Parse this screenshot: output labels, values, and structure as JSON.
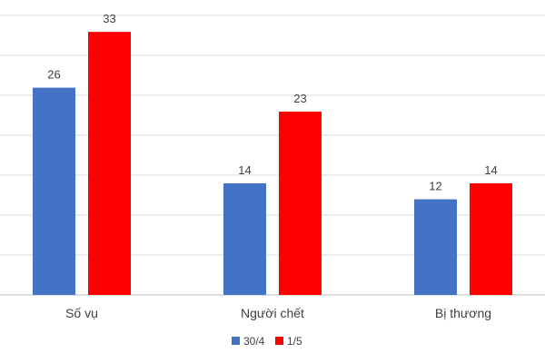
{
  "chart_data": {
    "type": "bar",
    "categories": [
      "Số vụ",
      "Người chết",
      "Bị thương"
    ],
    "series": [
      {
        "name": "30/4",
        "values": [
          26,
          14,
          12
        ],
        "color": "#4472C4"
      },
      {
        "name": "1/5",
        "values": [
          33,
          23,
          14
        ],
        "color": "#FF0000"
      }
    ],
    "ylim": [
      0,
      37
    ],
    "grid": true,
    "legend": "bottom-center"
  }
}
